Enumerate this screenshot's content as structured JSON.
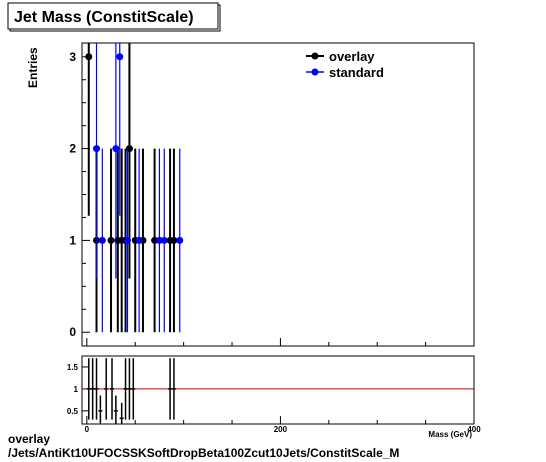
{
  "title": "Jet Mass (ConstitScale)",
  "footer": {
    "line1": "overlay",
    "line2": "/Jets/AntiKt10UFOCSSKSoftDropBeta100Zcut10Jets/ConstitScale_M"
  },
  "colors": {
    "overlay": "#000000",
    "standard": "#0000ff",
    "ratio_line": "#cc0000"
  },
  "chart_data": [
    {
      "type": "scatter",
      "ylabel": "Entries",
      "xlim": [
        -5,
        400
      ],
      "ylim": [
        -0.15,
        3.15
      ],
      "y_ticks": [
        "0",
        "1",
        "2",
        "3"
      ],
      "legend": {
        "placement": "top-right",
        "entries": [
          "overlay",
          "standard"
        ]
      },
      "series": [
        {
          "name": "overlay",
          "color": "#000000",
          "x": [
            2,
            10,
            25,
            32,
            36,
            40,
            44,
            50,
            58,
            70,
            86,
            90
          ],
          "y": [
            3,
            1,
            1,
            1,
            1,
            1,
            2,
            1,
            1,
            1,
            1,
            1
          ]
        },
        {
          "name": "standard",
          "color": "#0000ff",
          "x": [
            10,
            16,
            30,
            34,
            42,
            54,
            75,
            80,
            96
          ],
          "y": [
            2,
            1,
            2,
            3,
            1,
            1,
            1,
            1,
            1
          ]
        }
      ]
    },
    {
      "type": "scatter",
      "xlabel": "Mass (GeV)",
      "xlim": [
        -5,
        400
      ],
      "ylim": [
        0.2,
        1.75
      ],
      "x_ticks": [
        "0",
        "200",
        "400"
      ],
      "y_ticks": [
        "0.5",
        "1",
        "1.5"
      ],
      "reference_line": 1,
      "series": [
        {
          "name": "ratio",
          "x": [
            2,
            6,
            10,
            14,
            20,
            26,
            30,
            36,
            40,
            44,
            48,
            86,
            90
          ],
          "y": [
            1.0,
            1.0,
            1.0,
            0.5,
            1.0,
            1.0,
            0.5,
            0.33,
            1.0,
            1.0,
            1.0,
            1.0,
            1.0
          ]
        }
      ]
    }
  ]
}
